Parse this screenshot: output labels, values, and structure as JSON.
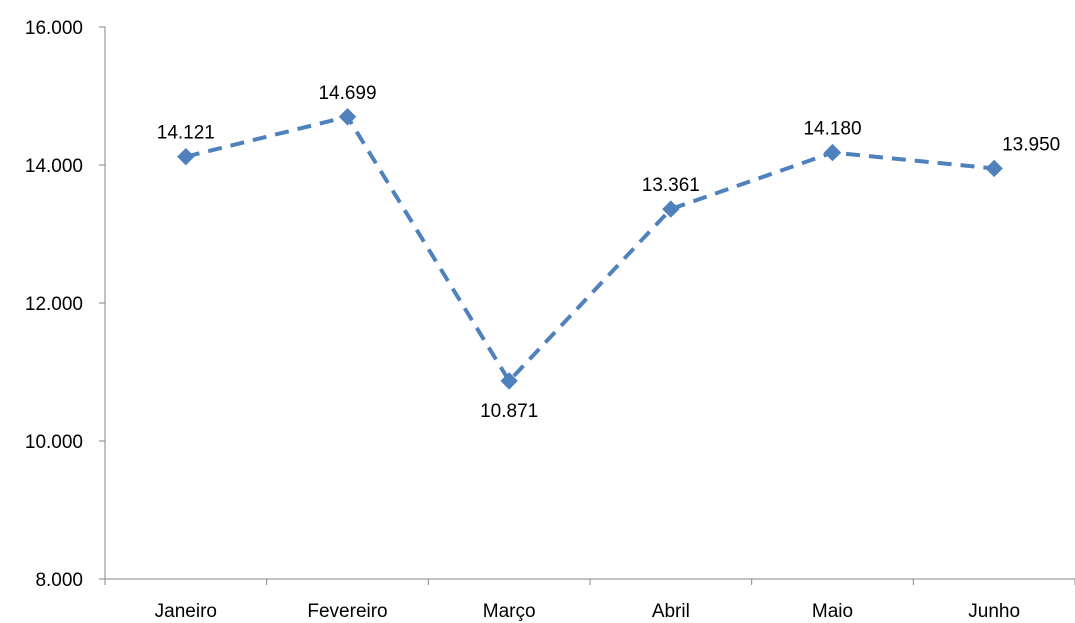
{
  "chart_data": {
    "type": "line",
    "title": "",
    "xlabel": "",
    "ylabel": "",
    "categories": [
      "Janeiro",
      "Fevereiro",
      "Março",
      "Abril",
      "Maio",
      "Junho"
    ],
    "series": [
      {
        "values": [
          14121,
          14699,
          10871,
          13361,
          14180,
          13950
        ],
        "value_labels": [
          "14.121",
          "14.699",
          "10.871",
          "13.361",
          "14.180",
          "13.950"
        ],
        "color": "#4F81BD",
        "line_style": "dashed",
        "marker": "diamond"
      }
    ],
    "ylim": [
      8000,
      16000
    ],
    "yticks": [
      8000,
      10000,
      12000,
      14000,
      16000
    ],
    "ytick_labels": [
      "8.000",
      "10.000",
      "12.000",
      "14.000",
      "16.000"
    ],
    "grid": false,
    "legend": "none"
  }
}
